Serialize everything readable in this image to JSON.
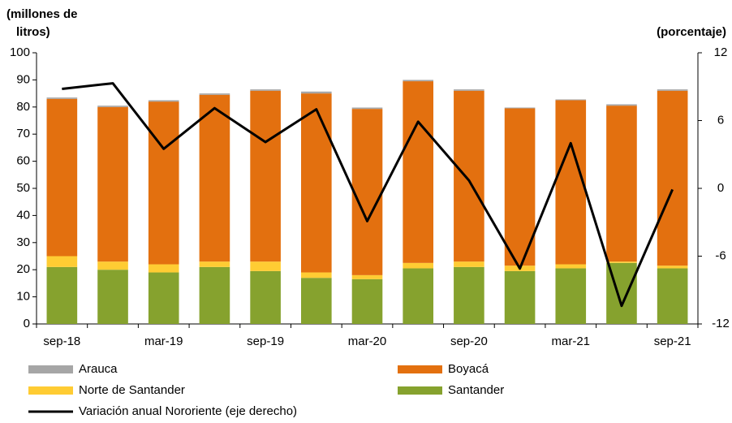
{
  "chart_data": {
    "type": "bar",
    "y_label": [
      "(millones de",
      "litros)"
    ],
    "y2_label": "(porcentaje)",
    "categories": [
      "sep-18",
      null,
      "mar-19",
      null,
      "sep-19",
      null,
      "mar-20",
      null,
      "sep-20",
      null,
      "mar-21",
      null,
      "sep-21"
    ],
    "stacked": true,
    "series": [
      {
        "name": "Santander",
        "color": "#86a22e",
        "values": [
          21,
          20,
          19,
          21,
          19.5,
          17,
          16.5,
          20.5,
          21,
          19.5,
          20.5,
          22.5,
          20.5
        ]
      },
      {
        "name": "Norte de Santander",
        "color": "#ffcc33",
        "values": [
          4,
          3,
          3,
          2,
          3.5,
          2,
          1.5,
          2,
          2,
          2,
          1.5,
          0.5,
          1
        ]
      },
      {
        "name": "Boyacá",
        "color": "#e3700f",
        "values": [
          58,
          57,
          60,
          61.5,
          63,
          66,
          61.3,
          67,
          63,
          58,
          60.5,
          57.5,
          64.5
        ]
      },
      {
        "name": "Arauca",
        "color": "#a6a6a6",
        "values": [
          0.5,
          0.5,
          0.5,
          0.5,
          0.5,
          0.7,
          0.5,
          0.5,
          0.5,
          0.3,
          0.3,
          0.5,
          0.5
        ]
      },
      {
        "name": "Variación anual Nororiente (eje derecho)",
        "type": "line",
        "axis": "y2",
        "color": "#000000",
        "values": [
          8.8,
          9.3,
          3.5,
          7.1,
          4.1,
          7.0,
          -2.9,
          5.9,
          0.7,
          -7.1,
          4.0,
          -10.4,
          -0.1
        ]
      }
    ],
    "ylim": [
      0,
      100
    ],
    "yticks": [
      0,
      10,
      20,
      30,
      40,
      50,
      60,
      70,
      80,
      90,
      100
    ],
    "y2lim": [
      -12,
      12
    ],
    "y2ticks": [
      -12,
      -6,
      0,
      6,
      12
    ]
  }
}
